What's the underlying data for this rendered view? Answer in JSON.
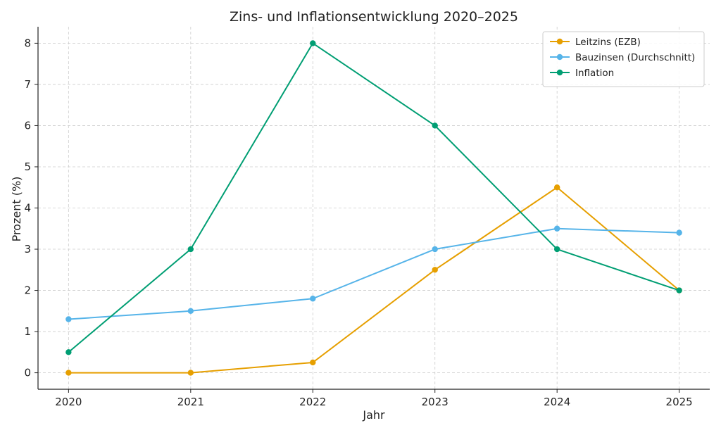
{
  "chart_data": {
    "type": "line",
    "title": "Zins- und Inflationsentwicklung 2020–2025",
    "xlabel": "Jahr",
    "ylabel": "Prozent (%)",
    "x": [
      2020,
      2021,
      2022,
      2023,
      2024,
      2025
    ],
    "x_tick_labels": [
      "2020",
      "2021",
      "2022",
      "2023",
      "2024",
      "2025"
    ],
    "xlim": [
      2019.75,
      2025.25
    ],
    "ylim": [
      -0.4,
      8.4
    ],
    "y_ticks": [
      0,
      1,
      2,
      3,
      4,
      5,
      6,
      7,
      8
    ],
    "y_tick_labels": [
      "0",
      "1",
      "2",
      "3",
      "4",
      "5",
      "6",
      "7",
      "8"
    ],
    "grid": true,
    "grid_style": "dashed",
    "legend_position": "top-right",
    "series": [
      {
        "name": "Leitzins (EZB)",
        "color": "#E69F00",
        "values": [
          0,
          0,
          0.25,
          2.5,
          4.5,
          2.0
        ]
      },
      {
        "name": "Bauzinsen (Durchschnitt)",
        "color": "#56B4E9",
        "values": [
          1.3,
          1.5,
          1.8,
          3.0,
          3.5,
          3.4
        ]
      },
      {
        "name": "Inflation",
        "color": "#009E73",
        "values": [
          0.5,
          3.0,
          8.0,
          6.0,
          3.0,
          2.0
        ]
      }
    ]
  }
}
